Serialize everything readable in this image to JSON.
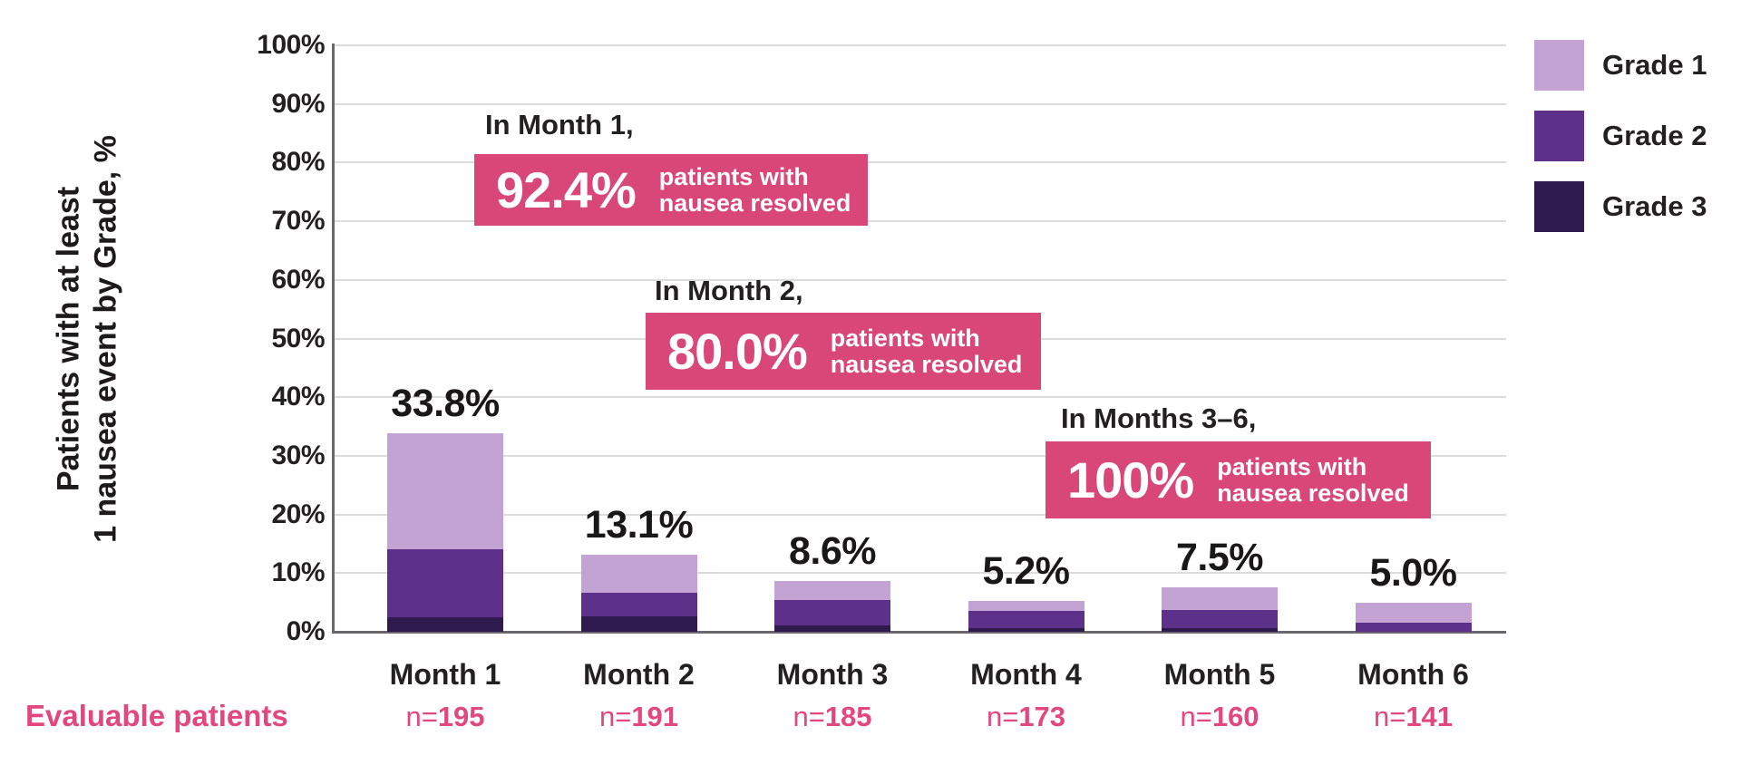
{
  "colors": {
    "grade1": "#C2A3D4",
    "grade2": "#5D3089",
    "grade3": "#2F1A4D",
    "callout_pink": "#D94778",
    "text_pink": "#E2477E",
    "gridline": "#DCDCDC",
    "axis": "#69676D",
    "text_dark": "#232021"
  },
  "y_axis": {
    "title_line1": "Patients with at least",
    "title_line2": "1 nausea event by Grade, %",
    "ticks": [
      "0%",
      "10%",
      "20%",
      "30%",
      "40%",
      "50%",
      "60%",
      "70%",
      "80%",
      "90%",
      "100%"
    ]
  },
  "footer": {
    "label": "Evaluable patients",
    "n_prefix": "n="
  },
  "legend": [
    {
      "label": "Grade 1",
      "color": "#C2A3D4"
    },
    {
      "label": "Grade 2",
      "color": "#5D3089"
    },
    {
      "label": "Grade 3",
      "color": "#2F1A4D"
    }
  ],
  "callouts": [
    {
      "heading": "In Month 1,",
      "value": "92.4%",
      "line1": "patients with",
      "line2": "nausea resolved"
    },
    {
      "heading": "In Month 2,",
      "value": "80.0%",
      "line1": "patients with",
      "line2": "nausea resolved"
    },
    {
      "heading": "In Months 3–6,",
      "value": "100%",
      "line1": "patients with",
      "line2": "nausea resolved"
    }
  ],
  "chart_data": {
    "type": "bar",
    "stacked": true,
    "title": "",
    "ylabel": "Patients with at least 1 nausea event by Grade, %",
    "xlabel": "",
    "ylim": [
      0,
      100
    ],
    "y_tick_step": 10,
    "grid": true,
    "legend_position": "top-right",
    "categories": [
      "Month 1",
      "Month 2",
      "Month 3",
      "Month 4",
      "Month 5",
      "Month 6"
    ],
    "n_values": [
      "195",
      "191",
      "185",
      "173",
      "160",
      "141"
    ],
    "totals": [
      "33.8%",
      "13.1%",
      "8.6%",
      "5.2%",
      "7.5%",
      "5.0%"
    ],
    "total_values": [
      33.8,
      13.1,
      8.6,
      5.2,
      7.5,
      5.0
    ],
    "series": [
      {
        "name": "Grade 1",
        "color": "#C2A3D4",
        "values": [
          19.7,
          6.5,
          3.2,
          1.7,
          3.8,
          3.5
        ]
      },
      {
        "name": "Grade 2",
        "color": "#5D3089",
        "values": [
          11.6,
          3.9,
          4.3,
          2.9,
          3.1,
          1.5
        ]
      },
      {
        "name": "Grade 3",
        "color": "#2F1A4D",
        "values": [
          2.5,
          2.7,
          1.1,
          0.6,
          0.6,
          0.0
        ]
      }
    ],
    "resolution_callouts": [
      {
        "period": "Month 1",
        "resolved_pct": 92.4
      },
      {
        "period": "Month 2",
        "resolved_pct": 80.0
      },
      {
        "period": "Months 3-6",
        "resolved_pct": 100.0
      }
    ]
  }
}
